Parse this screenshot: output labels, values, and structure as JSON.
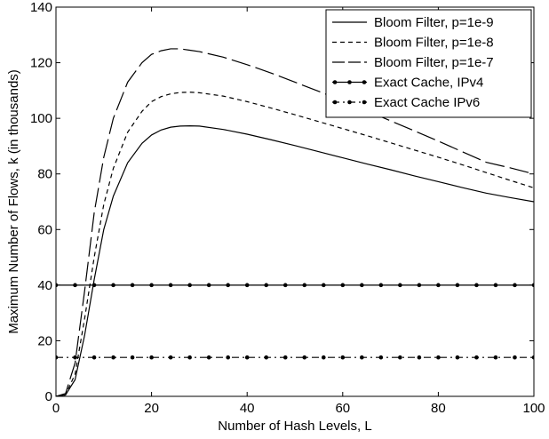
{
  "chart_data": {
    "type": "line",
    "title": "",
    "xlabel": "Number of Hash Levels, L",
    "ylabel": "Maximum Number of Flows, k (in thousands)",
    "xlim": [
      0,
      100
    ],
    "ylim": [
      0,
      140
    ],
    "xticks": [
      "0",
      "20",
      "40",
      "60",
      "80",
      "100"
    ],
    "yticks": [
      "0",
      "20",
      "40",
      "60",
      "80",
      "100",
      "120",
      "140"
    ],
    "grid": false,
    "legend_position": "top-right",
    "x": [
      0,
      2,
      4,
      6,
      8,
      10,
      12,
      15,
      18,
      20,
      22,
      24,
      26,
      28,
      30,
      35,
      40,
      45,
      50,
      55,
      60,
      65,
      70,
      75,
      80,
      85,
      90,
      95,
      100
    ],
    "series": [
      {
        "name": "Bloom Filter, p=1e-9",
        "line": "solid",
        "color": "#000000",
        "values": [
          0,
          0.5,
          6,
          22,
          42,
          60,
          72,
          84,
          91,
          94,
          95.8,
          96.8,
          97.2,
          97.3,
          97.2,
          96,
          94.3,
          92.3,
          90.2,
          88,
          85.8,
          83.6,
          81.5,
          79.3,
          77.2,
          75.1,
          73.1,
          71.5,
          70
        ]
      },
      {
        "name": "Bloom Filter, p=1e-8",
        "line": "dashed",
        "color": "#000000",
        "values": [
          0,
          0.5,
          8,
          28,
          50,
          69,
          82,
          95,
          102.5,
          106,
          107.8,
          108.8,
          109.3,
          109.4,
          109.2,
          108,
          106,
          103.7,
          101.3,
          98.8,
          96.3,
          93.8,
          91.2,
          88.6,
          86,
          83.3,
          80.5,
          77.7,
          75
        ]
      },
      {
        "name": "Bloom Filter, p=1e-7",
        "line": "longdash",
        "color": "#000000",
        "values": [
          0,
          1,
          12,
          38,
          66,
          86,
          100,
          113,
          120,
          123,
          124.3,
          125,
          125,
          124.5,
          124,
          122,
          119.3,
          116.3,
          113,
          109.7,
          106.2,
          102.7,
          99.1,
          95.5,
          91.8,
          88,
          84.2,
          82.2,
          80
        ]
      },
      {
        "name": "Exact Cache, IPv4",
        "line": "solid-markers",
        "color": "#000000",
        "values": [
          40,
          40,
          40,
          40,
          40,
          40,
          40,
          40,
          40,
          40,
          40,
          40,
          40,
          40,
          40,
          40,
          40,
          40,
          40,
          40,
          40,
          40,
          40,
          40,
          40,
          40,
          40,
          40,
          40
        ]
      },
      {
        "name": "Exact Cache IPv6",
        "line": "dashdot-markers",
        "color": "#000000",
        "values": [
          14,
          14,
          14,
          14,
          14,
          14,
          14,
          14,
          14,
          14,
          14,
          14,
          14,
          14,
          14,
          14,
          14,
          14,
          14,
          14,
          14,
          14,
          14,
          14,
          14,
          14,
          14,
          14,
          14
        ]
      }
    ]
  }
}
